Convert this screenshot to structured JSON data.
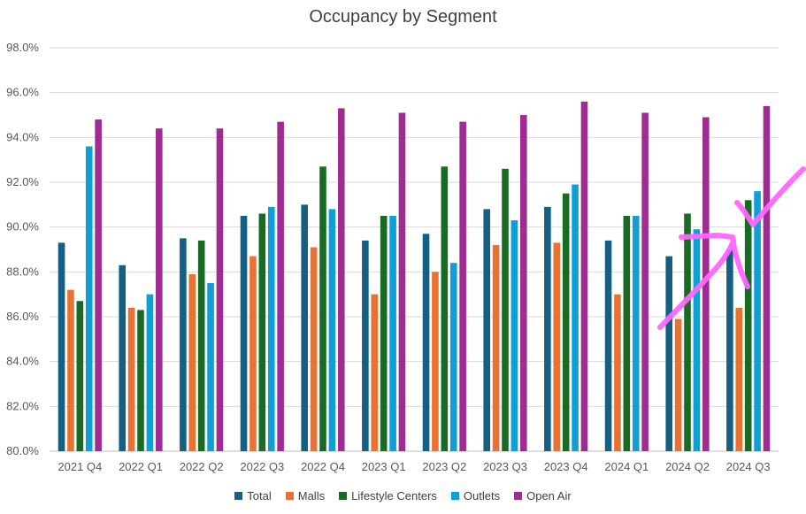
{
  "chart_data": {
    "type": "bar",
    "title": "Occupancy by Segment",
    "xlabel": "",
    "ylabel": "",
    "ylim": [
      80,
      98
    ],
    "yticks": [
      "80.0%",
      "82.0%",
      "84.0%",
      "86.0%",
      "88.0%",
      "90.0%",
      "92.0%",
      "94.0%",
      "96.0%",
      "98.0%"
    ],
    "grid": true,
    "legend_position": "bottom",
    "categories": [
      "2021 Q4",
      "2022 Q1",
      "2022 Q2",
      "2022 Q3",
      "2022 Q4",
      "2023 Q1",
      "2023 Q2",
      "2023 Q3",
      "2023 Q4",
      "2024 Q1",
      "2024 Q2",
      "2024 Q3"
    ],
    "series": [
      {
        "name": "Total",
        "color": "#156082",
        "values": [
          89.3,
          88.3,
          89.5,
          90.5,
          91.0,
          89.4,
          89.7,
          90.8,
          90.9,
          89.4,
          88.7,
          89.0
        ]
      },
      {
        "name": "Malls",
        "color": "#E97132",
        "values": [
          87.2,
          86.4,
          87.9,
          88.7,
          89.1,
          87.0,
          88.0,
          89.2,
          89.3,
          87.0,
          85.9,
          86.4
        ]
      },
      {
        "name": "Lifestyle Centers",
        "color": "#196B24",
        "values": [
          86.7,
          86.3,
          89.4,
          90.6,
          92.7,
          90.5,
          92.7,
          92.6,
          91.5,
          90.5,
          90.6,
          91.2
        ]
      },
      {
        "name": "Outlets",
        "color": "#0F9ED5",
        "values": [
          93.6,
          87.0,
          87.5,
          90.9,
          90.8,
          90.5,
          88.4,
          90.3,
          91.9,
          90.5,
          89.9,
          91.6
        ]
      },
      {
        "name": "Open Air",
        "color": "#A02B93",
        "values": [
          94.8,
          94.4,
          94.4,
          94.7,
          95.3,
          95.1,
          94.7,
          95.0,
          95.6,
          95.1,
          94.9,
          95.4
        ]
      }
    ],
    "annotation": {
      "type": "hand-drawn arrow with checkmark",
      "color": "#FF66FF"
    }
  }
}
